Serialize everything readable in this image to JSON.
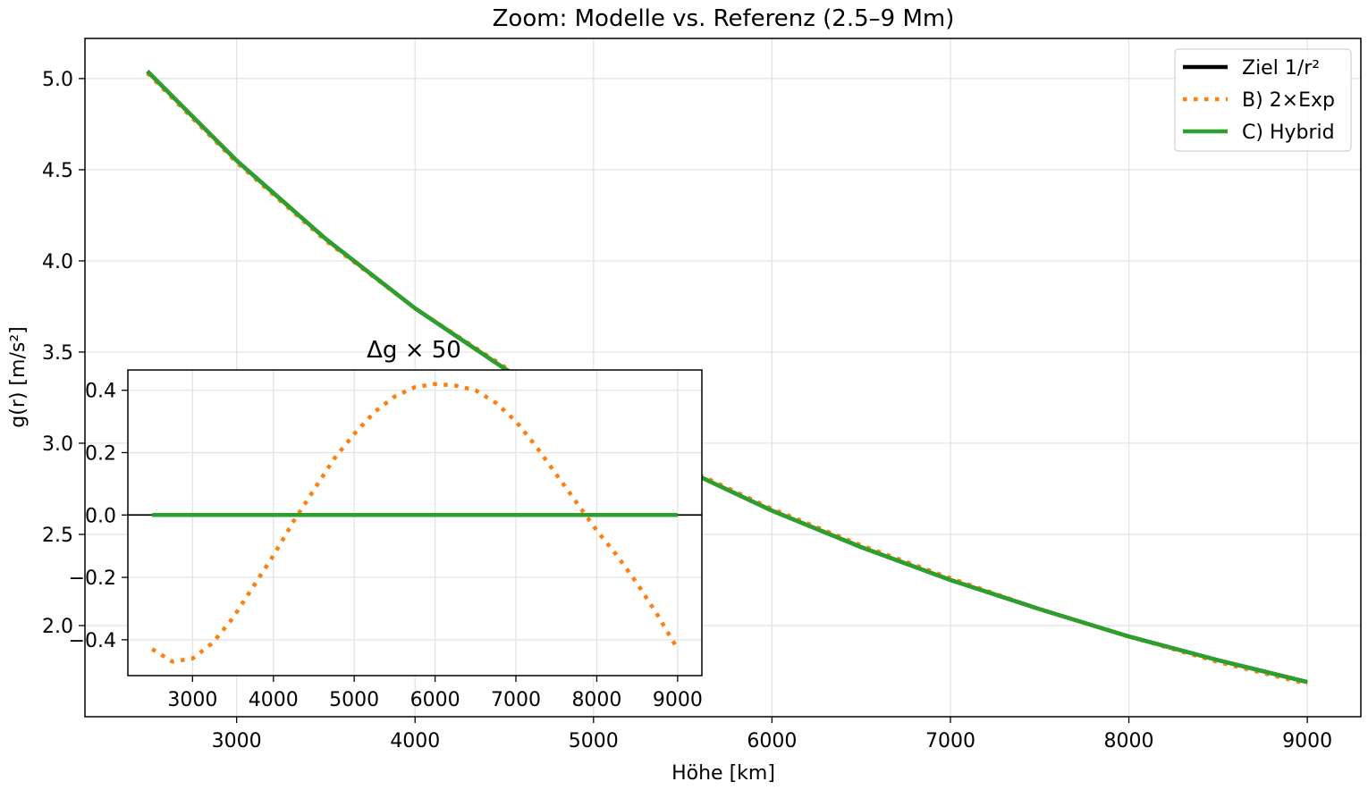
{
  "chart_data": [
    {
      "type": "line",
      "title": "Zoom: Modelle vs. Referenz (2.5–9 Mm)",
      "xlabel": "Höhe [km]",
      "ylabel": "g(r) [m/s²]",
      "xlim": [
        2150,
        9300
      ],
      "ylim": [
        1.5,
        5.22
      ],
      "xticks": [
        3000,
        4000,
        5000,
        6000,
        7000,
        8000,
        9000
      ],
      "xtick_labels": [
        "3000",
        "4000",
        "5000",
        "6000",
        "7000",
        "8000",
        "9000"
      ],
      "yticks": [
        2.0,
        2.5,
        3.0,
        3.5,
        4.0,
        4.5,
        5.0
      ],
      "ytick_labels": [
        "2.0",
        "2.5",
        "3.0",
        "3.5",
        "4.0",
        "4.5",
        "5.0"
      ],
      "grid": true,
      "legend": "top-right",
      "x": [
        2500,
        3000,
        3500,
        4000,
        4500,
        5000,
        5500,
        6000,
        6500,
        7000,
        7500,
        8000,
        8500,
        9000
      ],
      "series": [
        {
          "name": "Ziel 1/r²",
          "color": "#000000",
          "style": "solid",
          "values": [
            5.04,
            4.55,
            4.12,
            3.74,
            3.41,
            3.12,
            2.86,
            2.63,
            2.43,
            2.25,
            2.09,
            1.94,
            1.81,
            1.69
          ]
        },
        {
          "name": "B) 2×Exp",
          "color": "#ff7f0e",
          "style": "dotted",
          "values": [
            5.03,
            4.54,
            4.11,
            3.74,
            3.42,
            3.13,
            2.87,
            2.64,
            2.44,
            2.26,
            2.09,
            1.94,
            1.8,
            1.68
          ]
        },
        {
          "name": "C) Hybrid",
          "color": "#2ca02c",
          "style": "solid",
          "values": [
            5.04,
            4.55,
            4.12,
            3.74,
            3.41,
            3.12,
            2.86,
            2.63,
            2.43,
            2.25,
            2.09,
            1.94,
            1.81,
            1.69
          ]
        }
      ]
    },
    {
      "type": "line",
      "title": "Δg × 50",
      "xlim": [
        2200,
        9300
      ],
      "ylim": [
        -0.515,
        0.465
      ],
      "xticks": [
        3000,
        4000,
        5000,
        6000,
        7000,
        8000,
        9000
      ],
      "xtick_labels": [
        "3000",
        "4000",
        "5000",
        "6000",
        "7000",
        "8000",
        "9000"
      ],
      "yticks": [
        -0.4,
        -0.2,
        0.0,
        0.2,
        0.4
      ],
      "ytick_labels": [
        "−0.4",
        "−0.2",
        "0.0",
        "0.2",
        "0.4"
      ],
      "grid": true,
      "zero_line": true,
      "x": [
        2500,
        2750,
        3000,
        3250,
        3500,
        3750,
        4000,
        4250,
        4500,
        4750,
        5000,
        5250,
        5500,
        5750,
        6000,
        6250,
        6500,
        6750,
        7000,
        7250,
        7500,
        7750,
        8000,
        8250,
        8500,
        8750,
        9000
      ],
      "series": [
        {
          "color": "#ff7f0e",
          "style": "dotted",
          "values": [
            -0.43,
            -0.47,
            -0.46,
            -0.41,
            -0.33,
            -0.23,
            -0.13,
            -0.02,
            0.08,
            0.18,
            0.26,
            0.33,
            0.38,
            0.41,
            0.42,
            0.415,
            0.4,
            0.36,
            0.3,
            0.22,
            0.13,
            0.04,
            -0.05,
            -0.13,
            -0.22,
            -0.32,
            -0.43
          ]
        },
        {
          "color": "#2ca02c",
          "style": "solid",
          "values": [
            0.0,
            0.0,
            0.0,
            0.0,
            0.0,
            0.0,
            0.0,
            0.0,
            0.0,
            0.0,
            0.0,
            0.0,
            0.0,
            0.0,
            0.0,
            0.0,
            0.0,
            0.0,
            0.0,
            0.0,
            0.0,
            0.0,
            0.0,
            0.0,
            0.0,
            0.0,
            0.0
          ]
        }
      ]
    }
  ]
}
